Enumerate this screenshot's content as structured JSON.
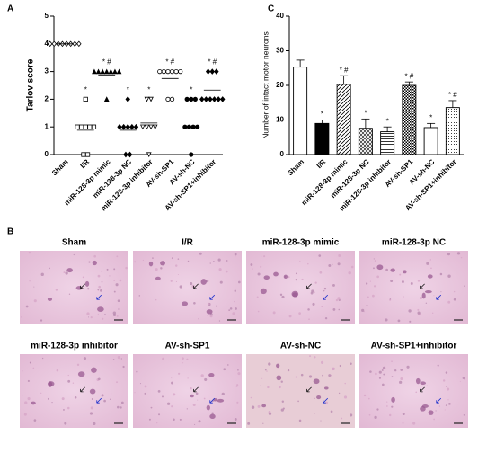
{
  "chart_data": [
    {
      "type": "dotplot",
      "panel_label": "A",
      "y_label": "Tarlov score",
      "categories": [
        "Sham",
        "I/R",
        "miR-128-3p mimic",
        "miR-128-3p NC",
        "miR-128-3p inhibitor",
        "AV-sh-SP1",
        "AV-sh-NC",
        "AV-sh-SP1+inhibitor"
      ],
      "values": [
        [
          4,
          4,
          4,
          4,
          4,
          4,
          4,
          4
        ],
        [
          0,
          0,
          1,
          1,
          1,
          1,
          1,
          2
        ],
        [
          2,
          3,
          3,
          3,
          3,
          3,
          3,
          3
        ],
        [
          0,
          0,
          1,
          1,
          1,
          1,
          1,
          2
        ],
        [
          0,
          1,
          1,
          1,
          1,
          2,
          2
        ],
        [
          2,
          2,
          3,
          3,
          3,
          3,
          3,
          3
        ],
        [
          0,
          1,
          1,
          1,
          1,
          2,
          2,
          2
        ],
        [
          2,
          2,
          2,
          2,
          2,
          2,
          3,
          3,
          3
        ]
      ],
      "means": [
        4,
        0.88,
        2.88,
        0.88,
        1.14,
        2.75,
        1.25,
        2.33
      ],
      "markers": [
        "diamond-open",
        "square-open",
        "triangle",
        "diamond",
        "triangle-down-open",
        "circle-open",
        "circle",
        "diamond"
      ],
      "annotations": [
        null,
        "*",
        "* #",
        "*",
        "*",
        "* #",
        "*",
        "* #"
      ],
      "color": "#000000",
      "ylim": [
        0,
        5
      ],
      "yticks": [
        0,
        1,
        2,
        3,
        4,
        5
      ]
    },
    {
      "type": "bar",
      "panel_label": "C",
      "y_label": "Number of intact motor neurons",
      "categories": [
        "Sham",
        "I/R",
        "miR-128-3p mimic",
        "miR-128-3p NC",
        "miR-128-3p inhibitor",
        "AV-sh-SP1",
        "AV-sh-NC",
        "AV-sh-SP1+inhibitor"
      ],
      "values": [
        25.3,
        9,
        20.3,
        7.6,
        6.6,
        20,
        7.8,
        13.6
      ],
      "errors": [
        2,
        1,
        2.5,
        2.7,
        1.4,
        1,
        1.2,
        2
      ],
      "patterns": [
        "none",
        "solid",
        "diagonal",
        "crosshatch",
        "horizontal",
        "checker",
        "none",
        "dots"
      ],
      "annotations": [
        null,
        "*",
        "* #",
        "*",
        "*",
        "* #",
        "*",
        "* #"
      ],
      "color": "#000000",
      "ylim": [
        0,
        40
      ],
      "yticks": [
        0,
        10,
        20,
        30,
        40
      ]
    }
  ],
  "micrographs": {
    "panel_label": "B",
    "titles": [
      "Sham",
      "I/R",
      "miR-128-3p mimic",
      "miR-128-3p NC",
      "miR-128-3p inhibitor",
      "AV-sh-SP1",
      "AV-sh-NC",
      "AV-sh-SP1+inhibitor"
    ]
  }
}
